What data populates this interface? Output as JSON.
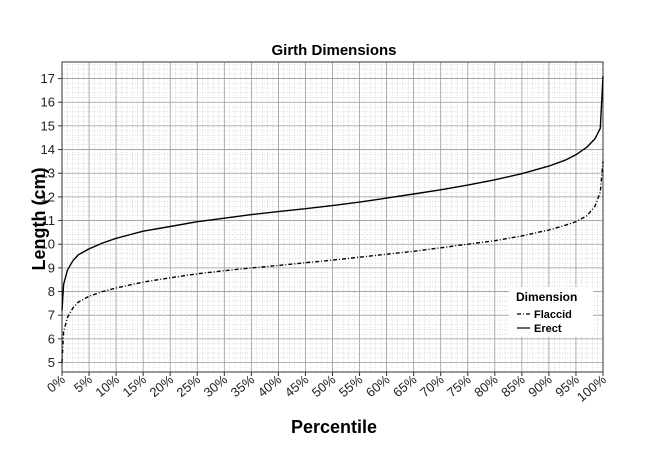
{
  "chart_data": {
    "type": "line",
    "title": "Girth Dimensions",
    "xlabel": "Percentile",
    "ylabel": "Length (cm)",
    "xlim": [
      0,
      100
    ],
    "ylim": [
      4.6,
      17.7
    ],
    "x_ticks": [
      "0%",
      "5%",
      "10%",
      "15%",
      "20%",
      "25%",
      "30%",
      "35%",
      "40%",
      "45%",
      "50%",
      "55%",
      "60%",
      "65%",
      "70%",
      "75%",
      "80%",
      "85%",
      "90%",
      "95%",
      "100%"
    ],
    "y_ticks": [
      5,
      6,
      7,
      8,
      9,
      10,
      11,
      12,
      13,
      14,
      15,
      16,
      17
    ],
    "grid": true,
    "legend": {
      "title": "Dimension",
      "position": "bottom-right",
      "entries": [
        "Flaccid",
        "Erect"
      ]
    },
    "x": [
      0,
      0.3,
      1,
      2,
      3,
      5,
      7.5,
      10,
      15,
      20,
      25,
      30,
      35,
      40,
      45,
      50,
      55,
      60,
      65,
      70,
      75,
      80,
      85,
      90,
      93,
      95,
      97,
      98.5,
      99.5,
      100
    ],
    "series": [
      {
        "name": "Flaccid",
        "style": "dashdot",
        "values": [
          5.0,
          6.3,
          6.9,
          7.3,
          7.55,
          7.8,
          8.0,
          8.15,
          8.4,
          8.58,
          8.75,
          8.88,
          9.0,
          9.1,
          9.22,
          9.33,
          9.45,
          9.58,
          9.7,
          9.85,
          10.0,
          10.15,
          10.35,
          10.6,
          10.8,
          10.95,
          11.2,
          11.6,
          12.2,
          13.5
        ]
      },
      {
        "name": "Erect",
        "style": "solid",
        "values": [
          7.2,
          8.3,
          8.9,
          9.3,
          9.55,
          9.8,
          10.05,
          10.25,
          10.55,
          10.75,
          10.95,
          11.1,
          11.25,
          11.38,
          11.5,
          11.63,
          11.78,
          11.95,
          12.12,
          12.3,
          12.5,
          12.72,
          12.98,
          13.3,
          13.55,
          13.78,
          14.1,
          14.45,
          14.9,
          17.1
        ]
      }
    ]
  }
}
